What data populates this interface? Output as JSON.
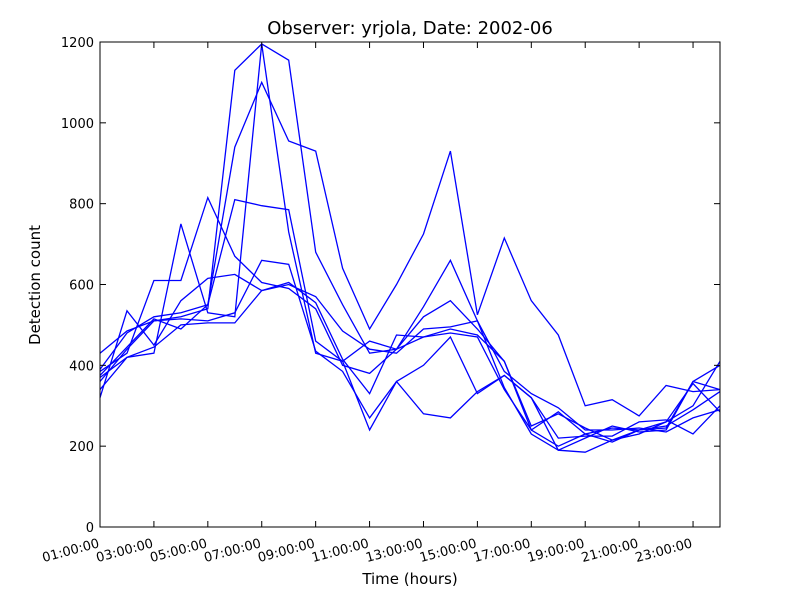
{
  "chart_data": {
    "type": "line",
    "title": "Observer: yrjola, Date: 2002-06",
    "xlabel": "Time (hours)",
    "ylabel": "Detection count",
    "x": [
      1,
      2,
      3,
      4,
      5,
      6,
      7,
      8,
      9,
      10,
      11,
      12,
      13,
      14,
      15,
      16,
      17,
      18,
      19,
      20,
      21,
      22,
      23,
      24
    ],
    "xlim": [
      1,
      24
    ],
    "ylim": [
      0,
      1200
    ],
    "yticks": [
      0,
      200,
      400,
      600,
      800,
      1000,
      1200
    ],
    "xticks": [
      1,
      3,
      5,
      7,
      9,
      11,
      13,
      15,
      17,
      19,
      21,
      23
    ],
    "xtick_labels": [
      "01:00:00",
      "03:00:00",
      "05:00:00",
      "07:00:00",
      "09:00:00",
      "11:00:00",
      "13:00:00",
      "15:00:00",
      "17:00:00",
      "19:00:00",
      "21:00:00",
      "23:00:00"
    ],
    "grid": false,
    "line_color": "#0000ff",
    "series": [
      {
        "values": [
          340,
          420,
          430,
          750,
          530,
          520,
          1195,
          730,
          430,
          410,
          460,
          440,
          470,
          480,
          470,
          340,
          240,
          285,
          230,
          245,
          240,
          245,
          360,
          400
        ]
      },
      {
        "values": [
          360,
          440,
          510,
          520,
          540,
          1130,
          1195,
          1155,
          680,
          550,
          430,
          440,
          520,
          560,
          490,
          410,
          240,
          200,
          230,
          210,
          240,
          260,
          300,
          410
        ]
      },
      {
        "values": [
          390,
          480,
          520,
          530,
          550,
          940,
          1100,
          955,
          930,
          640,
          490,
          600,
          725,
          930,
          525,
          715,
          560,
          475,
          300,
          315,
          275,
          350,
          335,
          340
        ]
      },
      {
        "values": [
          385,
          430,
          610,
          610,
          815,
          670,
          605,
          590,
          540,
          400,
          380,
          440,
          545,
          660,
          510,
          345,
          230,
          190,
          220,
          250,
          235,
          240,
          360,
          340
        ]
      },
      {
        "values": [
          375,
          445,
          515,
          490,
          550,
          810,
          795,
          785,
          460,
          410,
          240,
          360,
          400,
          470,
          330,
          375,
          320,
          190,
          185,
          215,
          240,
          250,
          290,
          335
        ]
      },
      {
        "values": [
          320,
          535,
          450,
          560,
          615,
          625,
          585,
          605,
          555,
          415,
          330,
          475,
          470,
          490,
          475,
          410,
          250,
          280,
          245,
          215,
          230,
          260,
          355,
          285
        ]
      },
      {
        "values": [
          430,
          485,
          510,
          515,
          510,
          530,
          660,
          650,
          435,
          385,
          270,
          360,
          280,
          270,
          335,
          375,
          320,
          220,
          225,
          225,
          260,
          265,
          230,
          300
        ]
      },
      {
        "values": [
          370,
          420,
          445,
          500,
          505,
          505,
          585,
          600,
          570,
          485,
          440,
          430,
          490,
          495,
          510,
          385,
          330,
          295,
          240,
          240,
          245,
          235,
          270,
          290
        ]
      }
    ]
  }
}
